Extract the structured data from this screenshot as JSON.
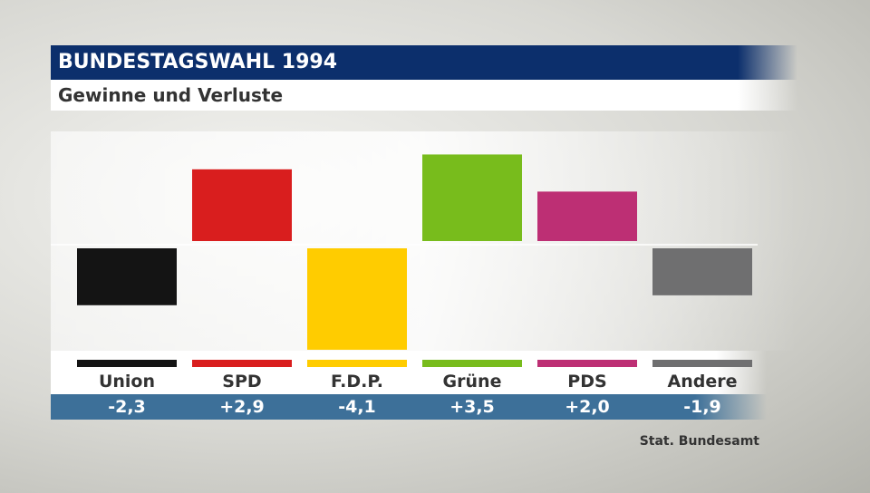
{
  "header": {
    "title": "BUNDESTAGSWAHL 1994",
    "subtitle": "Gewinne und Verluste"
  },
  "source": "Stat. Bundesamt",
  "chart_data": {
    "type": "bar",
    "title": "Gewinne und Verluste",
    "categories": [
      "Union",
      "SPD",
      "F.D.P.",
      "Grüne",
      "PDS",
      "Andere"
    ],
    "values": [
      -2.3,
      2.9,
      -4.1,
      3.5,
      2.0,
      -1.9
    ],
    "value_labels": [
      "-2,3",
      "+2,9",
      "-4,1",
      "+3,5",
      "+2,0",
      "-1,9"
    ],
    "colors": [
      "#141414",
      "#d91e1e",
      "#ffcc00",
      "#78bc1c",
      "#bd2f74",
      "#6f6f70"
    ],
    "ylim": [
      -4.1,
      3.5
    ],
    "grid": false
  }
}
